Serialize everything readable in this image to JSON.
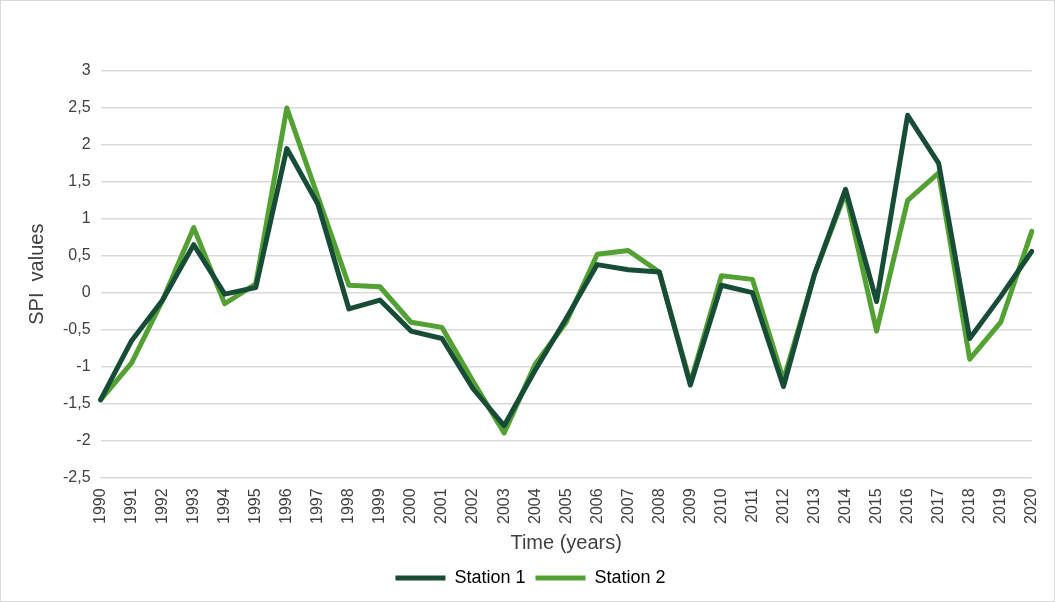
{
  "chart_data": {
    "type": "line",
    "xlabel": "Time (years)",
    "ylabel": "SPI  values",
    "categories": [
      "1990",
      "1991",
      "1992",
      "1993",
      "1994",
      "1995",
      "1996",
      "1997",
      "1998",
      "1999",
      "2000",
      "2001",
      "2002",
      "2003",
      "2004",
      "2005",
      "2006",
      "2007",
      "2008",
      "2009",
      "2010",
      "2011",
      "2012",
      "2013",
      "2014",
      "2015",
      "2016",
      "2017",
      "2018",
      "2019",
      "2020"
    ],
    "series": [
      {
        "name": "Station 1",
        "color": "#174c36",
        "values": [
          -1.45,
          -0.65,
          -0.1,
          0.65,
          -0.02,
          0.07,
          1.95,
          1.2,
          -0.22,
          -0.1,
          -0.52,
          -0.62,
          -1.3,
          -1.8,
          -1.05,
          -0.35,
          0.38,
          0.31,
          0.28,
          -1.25,
          0.1,
          0.0,
          -1.27,
          0.25,
          1.4,
          -0.12,
          2.4,
          1.75,
          -0.62,
          -0.05,
          0.56
        ]
      },
      {
        "name": "Station 2",
        "color": "#53a132",
        "values": [
          -1.45,
          -0.95,
          -0.1,
          0.88,
          -0.15,
          0.12,
          2.5,
          1.3,
          0.1,
          0.08,
          -0.4,
          -0.47,
          -1.2,
          -1.9,
          -0.97,
          -0.4,
          0.52,
          0.57,
          0.28,
          -1.22,
          0.23,
          0.18,
          -1.18,
          0.25,
          1.35,
          -0.52,
          1.25,
          1.62,
          -0.9,
          -0.4,
          0.83
        ]
      }
    ],
    "ylim": [
      -2.5,
      3
    ],
    "yticks": [
      {
        "value": -2.5,
        "label": "-2,5"
      },
      -2,
      {
        "value": -1.5,
        "label": "-1,5"
      },
      -1,
      {
        "value": -0.5,
        "label": "-0,5"
      },
      0,
      {
        "value": 0.5,
        "label": "0,5"
      },
      1,
      {
        "value": 1.5,
        "label": "1,5"
      },
      2,
      {
        "value": 2.5,
        "label": "2,5"
      },
      3
    ],
    "grid": "y",
    "legend": "bottom",
    "marker": "none",
    "line_style": "solid"
  }
}
